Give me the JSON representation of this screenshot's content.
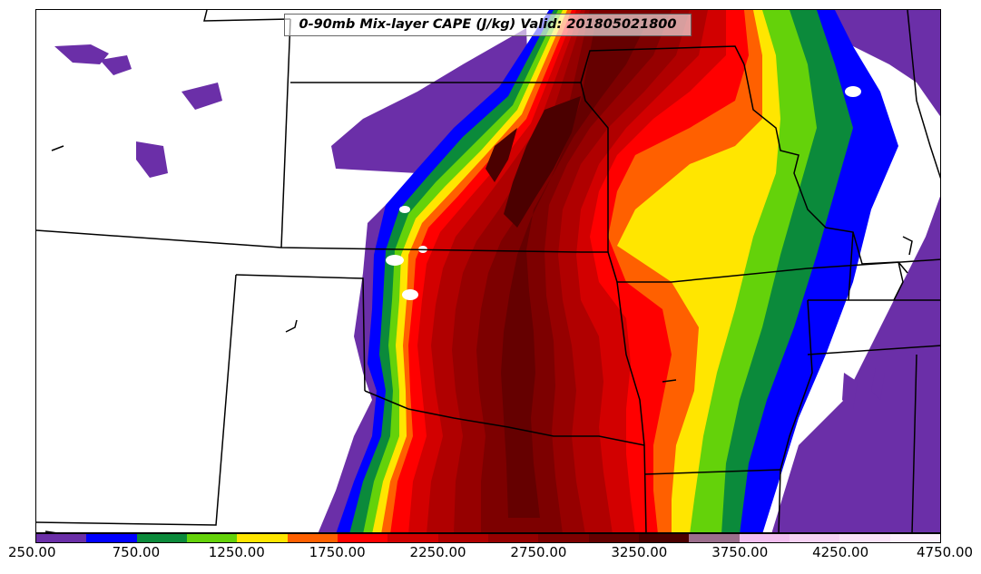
{
  "title": "0-90mb Mix-layer CAPE (J/kg) Valid: 201805021800",
  "colorbar": {
    "levels": [
      250,
      500,
      750,
      1000,
      1250,
      1500,
      1750,
      2000,
      2250,
      2500,
      2750,
      3000,
      3250,
      3500,
      3750,
      4000,
      4250,
      4500,
      4750
    ],
    "colors": [
      "#6b2fa8",
      "#0000ff",
      "#0b8a3b",
      "#64d20a",
      "#ffe600",
      "#ff6000",
      "#ff0000",
      "#d20000",
      "#b00000",
      "#960000",
      "#7d0000",
      "#650000",
      "#4b0000",
      "#9b6e8c",
      "#f3bff0",
      "#f7d2f4",
      "#fae3f8",
      "#fdf1fc"
    ],
    "tick_labels": [
      "250.00",
      "750.00",
      "1250.00",
      "1750.00",
      "2250.00",
      "2750.00",
      "3250.00",
      "3750.00",
      "4250.00",
      "4750.00"
    ]
  }
}
